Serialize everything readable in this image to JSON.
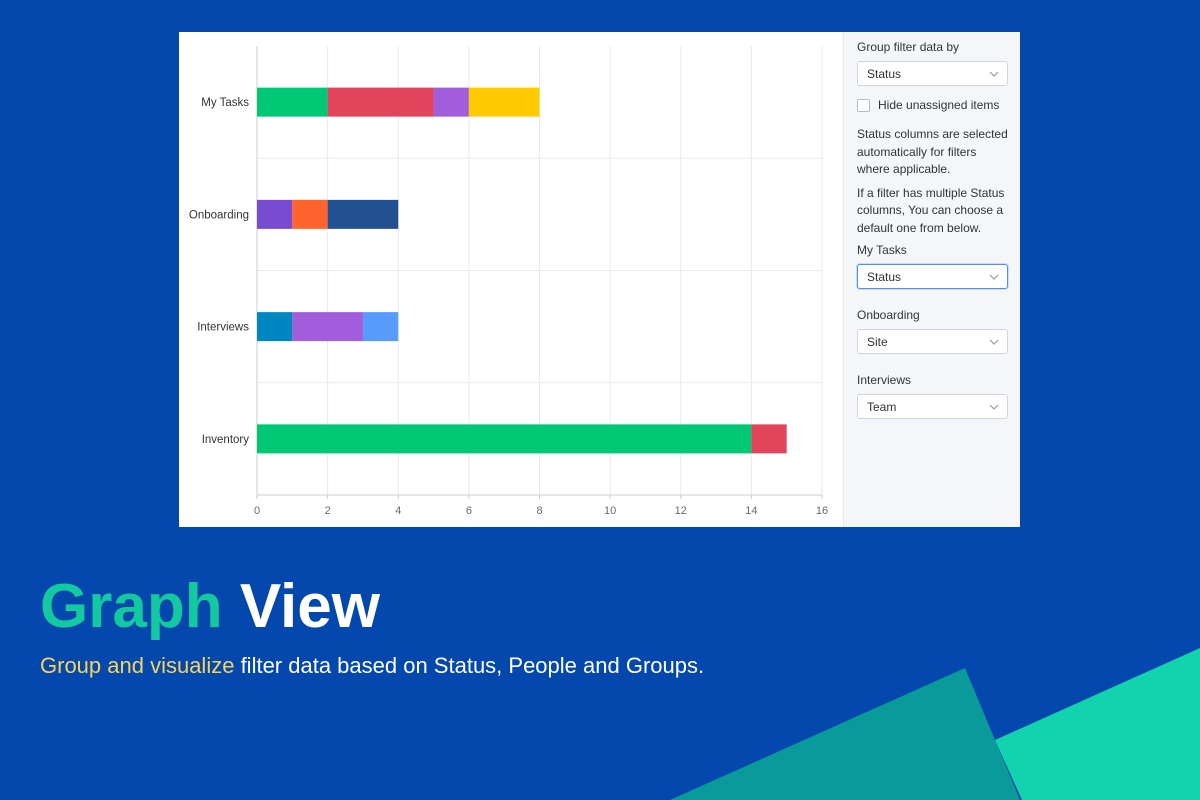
{
  "colors": {
    "background": "#0447ad",
    "headline_accent": "#12c9a0",
    "subline_accent": "#f5d45a",
    "shape_dark": "#0a9a9a",
    "shape_light": "#12d3ae"
  },
  "hero": {
    "title_accent": "Graph",
    "title_rest": " View",
    "subtitle_accent": "Group and visualize",
    "subtitle_rest": " filter data based on Status, People and Groups."
  },
  "sidebar": {
    "group_by_label": "Group filter data by",
    "group_by_value": "Status",
    "hide_unassigned_label": "Hide unassigned items",
    "info_text_1": "Status columns are selected automatically for filters where applicable.",
    "info_text_2": "If a filter has multiple Status columns, You can choose a default one from below.",
    "filters": [
      {
        "label": "My Tasks",
        "value": "Status",
        "icon": "chevron-down-icon"
      },
      {
        "label": "Onboarding",
        "value": "Site",
        "icon": "chevron-down-icon"
      },
      {
        "label": "Interviews",
        "value": "Team",
        "icon": "chevron-down-icon"
      }
    ]
  },
  "chart_data": {
    "type": "bar",
    "orientation": "horizontal",
    "stacked": true,
    "categories": [
      "My Tasks",
      "Onboarding",
      "Interviews",
      "Inventory"
    ],
    "xlim": [
      0,
      16
    ],
    "x_ticks": [
      0,
      2,
      4,
      6,
      8,
      10,
      12,
      14,
      16
    ],
    "grid": true,
    "legend": "none",
    "rows": [
      {
        "category": "My Tasks",
        "segments": [
          {
            "value": 2,
            "color": "#00c875"
          },
          {
            "value": 3,
            "color": "#e2445c"
          },
          {
            "value": 1,
            "color": "#a25ddc"
          },
          {
            "value": 2,
            "color": "#ffcb00"
          }
        ]
      },
      {
        "category": "Onboarding",
        "segments": [
          {
            "value": 1,
            "color": "#784bd1"
          },
          {
            "value": 1,
            "color": "#ff642e"
          },
          {
            "value": 2,
            "color": "#225091"
          }
        ]
      },
      {
        "category": "Interviews",
        "segments": [
          {
            "value": 1,
            "color": "#0086c0"
          },
          {
            "value": 2,
            "color": "#a25ddc"
          },
          {
            "value": 1,
            "color": "#579bfc"
          }
        ]
      },
      {
        "category": "Inventory",
        "segments": [
          {
            "value": 14,
            "color": "#00c875"
          },
          {
            "value": 1,
            "color": "#e2445c"
          }
        ]
      }
    ]
  }
}
